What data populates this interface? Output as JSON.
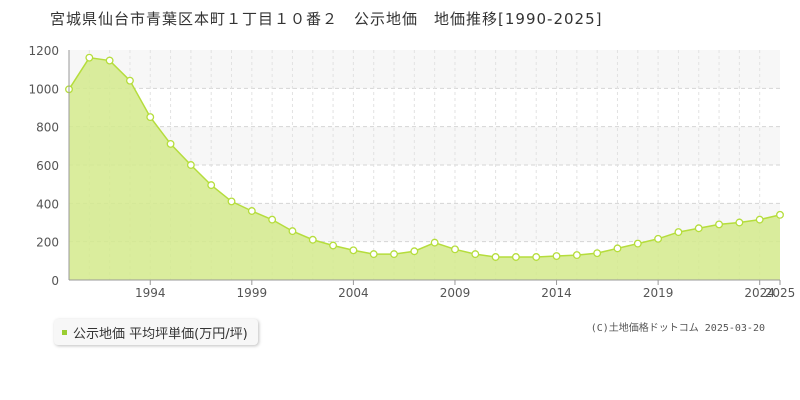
{
  "title": "宮城県仙台市青葉区本町１丁目１０番２　公示地価　地価推移[1990-2025]",
  "legend_label": "公示地価 平均坪単価(万円/坪)",
  "copyright": "(C)土地価格ドットコム 2025-03-20",
  "colors": {
    "line": "#b5dd3c",
    "fill": "#d4ea8c",
    "grid": "#d5d5d5",
    "marker": "#9acd32"
  },
  "chart_data": {
    "type": "area",
    "title": "",
    "xlabel": "",
    "ylabel": "",
    "x": [
      1990,
      1991,
      1992,
      1993,
      1994,
      1995,
      1996,
      1997,
      1998,
      1999,
      2000,
      2001,
      2002,
      2003,
      2004,
      2005,
      2006,
      2007,
      2008,
      2009,
      2010,
      2011,
      2012,
      2013,
      2014,
      2015,
      2016,
      2017,
      2018,
      2019,
      2020,
      2021,
      2022,
      2023,
      2024,
      2025
    ],
    "series": [
      {
        "name": "公示地価 平均坪単価(万円/坪)",
        "values": [
          995,
          1160,
          1145,
          1040,
          850,
          710,
          600,
          495,
          410,
          360,
          315,
          255,
          210,
          180,
          155,
          135,
          135,
          150,
          195,
          160,
          135,
          120,
          120,
          120,
          125,
          130,
          140,
          165,
          190,
          215,
          250,
          270,
          290,
          300,
          315,
          340
        ]
      }
    ],
    "xlim": [
      1990,
      2025
    ],
    "ylim": [
      0,
      1200
    ],
    "y_ticks": [
      "0",
      "200",
      "400",
      "600",
      "800",
      "1000",
      "1200"
    ],
    "x_ticks": [
      {
        "value": 1994,
        "label": "1994"
      },
      {
        "value": 1999,
        "label": "1999"
      },
      {
        "value": 2004,
        "label": "2004"
      },
      {
        "value": 2009,
        "label": "2009"
      },
      {
        "value": 2014,
        "label": "2014"
      },
      {
        "value": 2019,
        "label": "2019"
      },
      {
        "value": 2024,
        "label": "2024"
      },
      {
        "value": 2025,
        "label": "2025"
      }
    ],
    "grid": true,
    "legend_position": "bottom-left"
  }
}
